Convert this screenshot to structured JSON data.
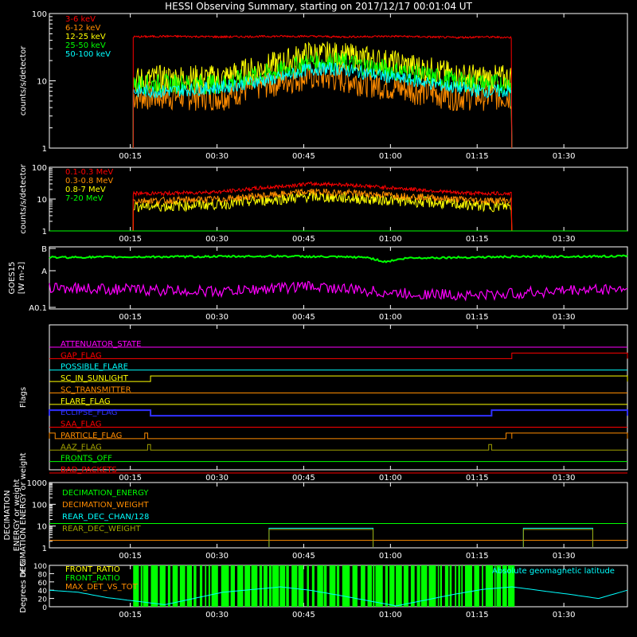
{
  "title": "HESSI Observing Summary, starting on 2017/12/17 00:01:04 UT",
  "time_axis": {
    "ticks": [
      "00:15",
      "00:30",
      "00:45",
      "01:00",
      "01:15",
      "01:30"
    ],
    "tick_minutes": [
      14,
      29,
      44,
      59,
      74,
      89
    ],
    "start": "00:01:04",
    "range_minutes": [
      0,
      100
    ]
  },
  "colors": {
    "background": "#000000",
    "axes": "#ffffff",
    "red": "#ff0000",
    "orange": "#ff8c00",
    "yellow": "#ffff00",
    "green": "#00ff00",
    "cyan": "#00ffff",
    "magenta": "#ff00ff",
    "blue": "#0000ff",
    "olive": "#a0a000"
  },
  "chart_data": [
    {
      "id": "low-energy",
      "type": "line",
      "ylabel": "counts/s/detector",
      "yscale": "log",
      "ylim": [
        1,
        100
      ],
      "yticks": [
        "1",
        "10",
        "100"
      ],
      "series": [
        {
          "name": "3-6 keV",
          "color": "#ff0000",
          "x": [
            14.5,
            20,
            30,
            40,
            45,
            50,
            60,
            70,
            75,
            80
          ],
          "y": [
            45,
            46,
            45,
            46,
            46,
            45,
            46,
            44,
            45,
            44
          ]
        },
        {
          "name": "6-12 keV",
          "color": "#ff8c00",
          "x": [
            14.5,
            20,
            30,
            40,
            45,
            50,
            60,
            70,
            75,
            80
          ],
          "y": [
            6,
            6,
            6,
            10,
            12,
            11,
            8,
            6,
            6,
            6
          ]
        },
        {
          "name": "12-25 keV",
          "color": "#ffff00",
          "x": [
            14.5,
            20,
            30,
            40,
            45,
            50,
            60,
            70,
            75,
            80
          ],
          "y": [
            10,
            11,
            11,
            18,
            25,
            24,
            18,
            12,
            11,
            11
          ]
        },
        {
          "name": "25-50 keV",
          "color": "#00ff00",
          "x": [
            14.5,
            20,
            30,
            40,
            45,
            50,
            60,
            70,
            75,
            80
          ],
          "y": [
            9,
            9,
            9,
            14,
            19,
            19,
            14,
            10,
            9,
            9
          ]
        },
        {
          "name": "50-100 keV",
          "color": "#00ffff",
          "x": [
            14.5,
            20,
            30,
            40,
            45,
            50,
            60,
            70,
            75,
            80
          ],
          "y": [
            7,
            7,
            8,
            11,
            15,
            15,
            11,
            8,
            7,
            7
          ]
        }
      ]
    },
    {
      "id": "high-energy",
      "type": "line",
      "ylabel": "counts/s/detector",
      "yscale": "log",
      "ylim": [
        1,
        100
      ],
      "yticks": [
        "1",
        "10",
        "100"
      ],
      "series": [
        {
          "name": "0.1-0.3 MeV",
          "color": "#ff0000",
          "x": [
            14.5,
            20,
            30,
            40,
            45,
            50,
            60,
            70,
            75,
            80
          ],
          "y": [
            15,
            15,
            17,
            25,
            30,
            29,
            22,
            16,
            15,
            15
          ]
        },
        {
          "name": "0.3-0.8 MeV",
          "color": "#ff8c00",
          "x": [
            14.5,
            20,
            30,
            40,
            45,
            50,
            60,
            70,
            75,
            80
          ],
          "y": [
            9,
            9,
            10,
            14,
            17,
            16,
            13,
            10,
            9,
            9
          ]
        },
        {
          "name": "0.8-7 MeV",
          "color": "#ffff00",
          "x": [
            14.5,
            20,
            30,
            40,
            45,
            50,
            60,
            70,
            75,
            80
          ],
          "y": [
            6,
            6,
            7,
            10,
            12,
            11,
            9,
            7,
            6,
            6
          ]
        },
        {
          "name": "7-20 MeV",
          "color": "#00ff00",
          "x": [
            0,
            100
          ],
          "y": [
            1,
            1
          ]
        }
      ]
    },
    {
      "id": "goes",
      "type": "line",
      "ylabel": "GOES15 [W m-2]",
      "yticks": [
        "A0.1",
        "A",
        "B"
      ],
      "series": [
        {
          "name": "GOES long",
          "color": "#00ff00",
          "x": [
            0,
            20,
            40,
            55,
            58,
            62,
            80,
            100
          ],
          "y": [
            0.83,
            0.84,
            0.85,
            0.83,
            0.76,
            0.82,
            0.84,
            0.85
          ]
        },
        {
          "name": "GOES short",
          "color": "#ff00ff",
          "x": [
            0,
            10,
            20,
            30,
            45,
            60,
            75,
            90,
            100
          ],
          "y": [
            0.35,
            0.32,
            0.3,
            0.28,
            0.37,
            0.25,
            0.22,
            0.3,
            0.33
          ]
        }
      ]
    },
    {
      "id": "flags",
      "type": "line",
      "ylabel": "Flags",
      "flags": [
        {
          "name": "ATTENUATOR_STATE",
          "color": "#ff00ff",
          "segments": []
        },
        {
          "name": "GAP_FLAG",
          "color": "#ff0000",
          "segments": [
            [
              80,
              100
            ]
          ]
        },
        {
          "name": "POSSIBLE_FLARE",
          "color": "#00ffff",
          "segments": []
        },
        {
          "name": "SC_IN_SUNLIGHT",
          "color": "#ffff00",
          "segments": [
            [
              17.5,
              100
            ]
          ]
        },
        {
          "name": "SC_TRANSMITTER",
          "color": "#ff8c00",
          "segments": []
        },
        {
          "name": "FLARE_FLAG",
          "color": "#ffff00",
          "segments": []
        },
        {
          "name": "ECLIPSE_FLAG",
          "color": "#3030ff",
          "segments": [
            [
              0,
              17.5
            ],
            [
              76.5,
              100
            ]
          ]
        },
        {
          "name": "SAA_FLAG",
          "color": "#ff0000",
          "segments": []
        },
        {
          "name": "PARTICLE_FLAG",
          "color": "#ff8c00",
          "segments": [
            [
              0,
              1
            ],
            [
              16.5,
              17
            ],
            [
              79,
              80
            ],
            [
              80,
              100
            ]
          ]
        },
        {
          "name": "AAZ_FLAG",
          "color": "#a0a000",
          "segments": [
            [
              17,
              17.5
            ],
            [
              76,
              76.5
            ]
          ]
        },
        {
          "name": "FRONTS_OFF",
          "color": "#00ff00",
          "segments": []
        },
        {
          "name": "BAD_PACKETS",
          "color": "#ff0000",
          "segments": []
        }
      ]
    },
    {
      "id": "decimation",
      "type": "line",
      "ylabel": "DECIMATION ENERGY or weight",
      "yscale": "log",
      "ylim": [
        1,
        1000
      ],
      "yticks": [
        "1",
        "10",
        "100",
        "1000"
      ],
      "series": [
        {
          "name": "DECIMATION_ENERGY",
          "color": "#00ff00",
          "x": [
            0,
            100
          ],
          "y": [
            13,
            13
          ]
        },
        {
          "name": "DECIMATION_WEIGHT",
          "color": "#ff8c00",
          "x": [
            0,
            100
          ],
          "y": [
            2.2,
            2.2
          ]
        },
        {
          "name": "REAR_DEC_CHAN/128",
          "color": "#00ffff",
          "windows": [
            [
              38,
              56
            ],
            [
              82,
              94
            ]
          ],
          "y": 8
        },
        {
          "name": "REAR_DEC_WEIGHT",
          "color": "#a0a000",
          "windows": [
            [
              38,
              56
            ],
            [
              82,
              94
            ]
          ],
          "y": 7
        }
      ]
    },
    {
      "id": "ratios",
      "type": "area",
      "ylabel": "Degrees or %",
      "ylim": [
        0,
        100
      ],
      "yticks": [
        "0",
        "20",
        "40",
        "60",
        "80",
        "100"
      ],
      "annotation": "Absolute geomagnetic latitude",
      "series": [
        {
          "name": "FRONT_RATIO",
          "color": "#ffff00"
        },
        {
          "name": "FRONT_RATIO",
          "color": "#00ff00",
          "x": [
            14.5,
            80
          ],
          "y": [
            100,
            100
          ]
        },
        {
          "name": "MAX_DET_VS_TOT",
          "color": "#ff8c00"
        },
        {
          "name": "Absolute geomagnetic latitude",
          "color": "#00ffff",
          "x": [
            0,
            5,
            10,
            20,
            30,
            40,
            45,
            50,
            60,
            70,
            75,
            80,
            90,
            95,
            100
          ],
          "y": [
            40,
            35,
            22,
            5,
            35,
            48,
            40,
            28,
            2,
            30,
            42,
            48,
            30,
            20,
            40
          ]
        }
      ]
    }
  ]
}
